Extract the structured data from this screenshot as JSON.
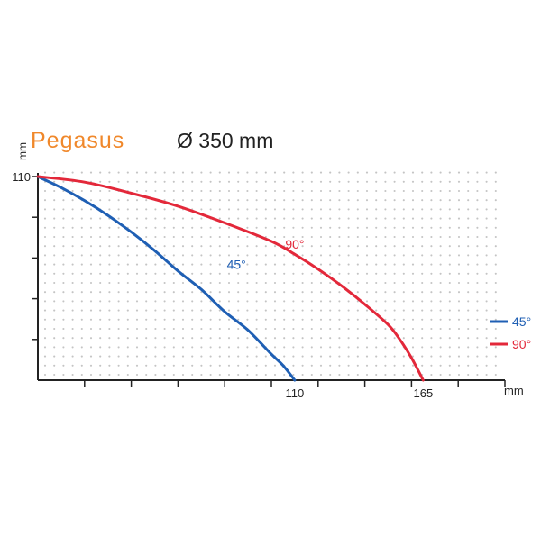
{
  "header": {
    "brand": "Pegasus",
    "spec": "Ø 350 mm"
  },
  "colors": {
    "brand": "#f0882b",
    "series_45": "#1f5fb4",
    "series_90": "#e3283a",
    "axis": "#222222",
    "grid_dots": "#c4c4c4"
  },
  "chart_data": {
    "type": "line",
    "title": "Pegasus Ø 350 mm",
    "xlabel": "mm",
    "ylabel": "mm",
    "xlim": [
      0,
      200
    ],
    "ylim": [
      0,
      110
    ],
    "x_ticks": [
      0,
      20,
      40,
      60,
      80,
      100,
      120,
      140,
      160,
      180,
      200
    ],
    "y_ticks": [
      0,
      22,
      44,
      66,
      88,
      110
    ],
    "x_tick_labels": [
      {
        "value": 110,
        "label": "110"
      },
      {
        "value": 165,
        "label": "165"
      }
    ],
    "y_tick_labels": [
      {
        "value": 110,
        "label": "110"
      }
    ],
    "grid": "dotted",
    "legend_position": "right",
    "series": [
      {
        "name": "45°",
        "label": "45°",
        "color": "#1f5fb4",
        "x": [
          0,
          10,
          20,
          30,
          40,
          50,
          60,
          70,
          80,
          90,
          100,
          105,
          110
        ],
        "y": [
          110,
          104,
          97,
          89,
          80,
          70,
          59,
          49,
          37,
          27,
          14,
          8,
          0
        ],
        "label_at": [
          85,
          60
        ]
      },
      {
        "name": "90°",
        "label": "90°",
        "color": "#e3283a",
        "x": [
          0,
          20,
          40,
          60,
          80,
          100,
          110,
          120,
          130,
          140,
          150,
          155,
          160,
          165
        ],
        "y": [
          110,
          107,
          101,
          94,
          85,
          75,
          68,
          60,
          51,
          41,
          30,
          22,
          12,
          0
        ],
        "label_at": [
          110,
          71
        ]
      }
    ]
  }
}
